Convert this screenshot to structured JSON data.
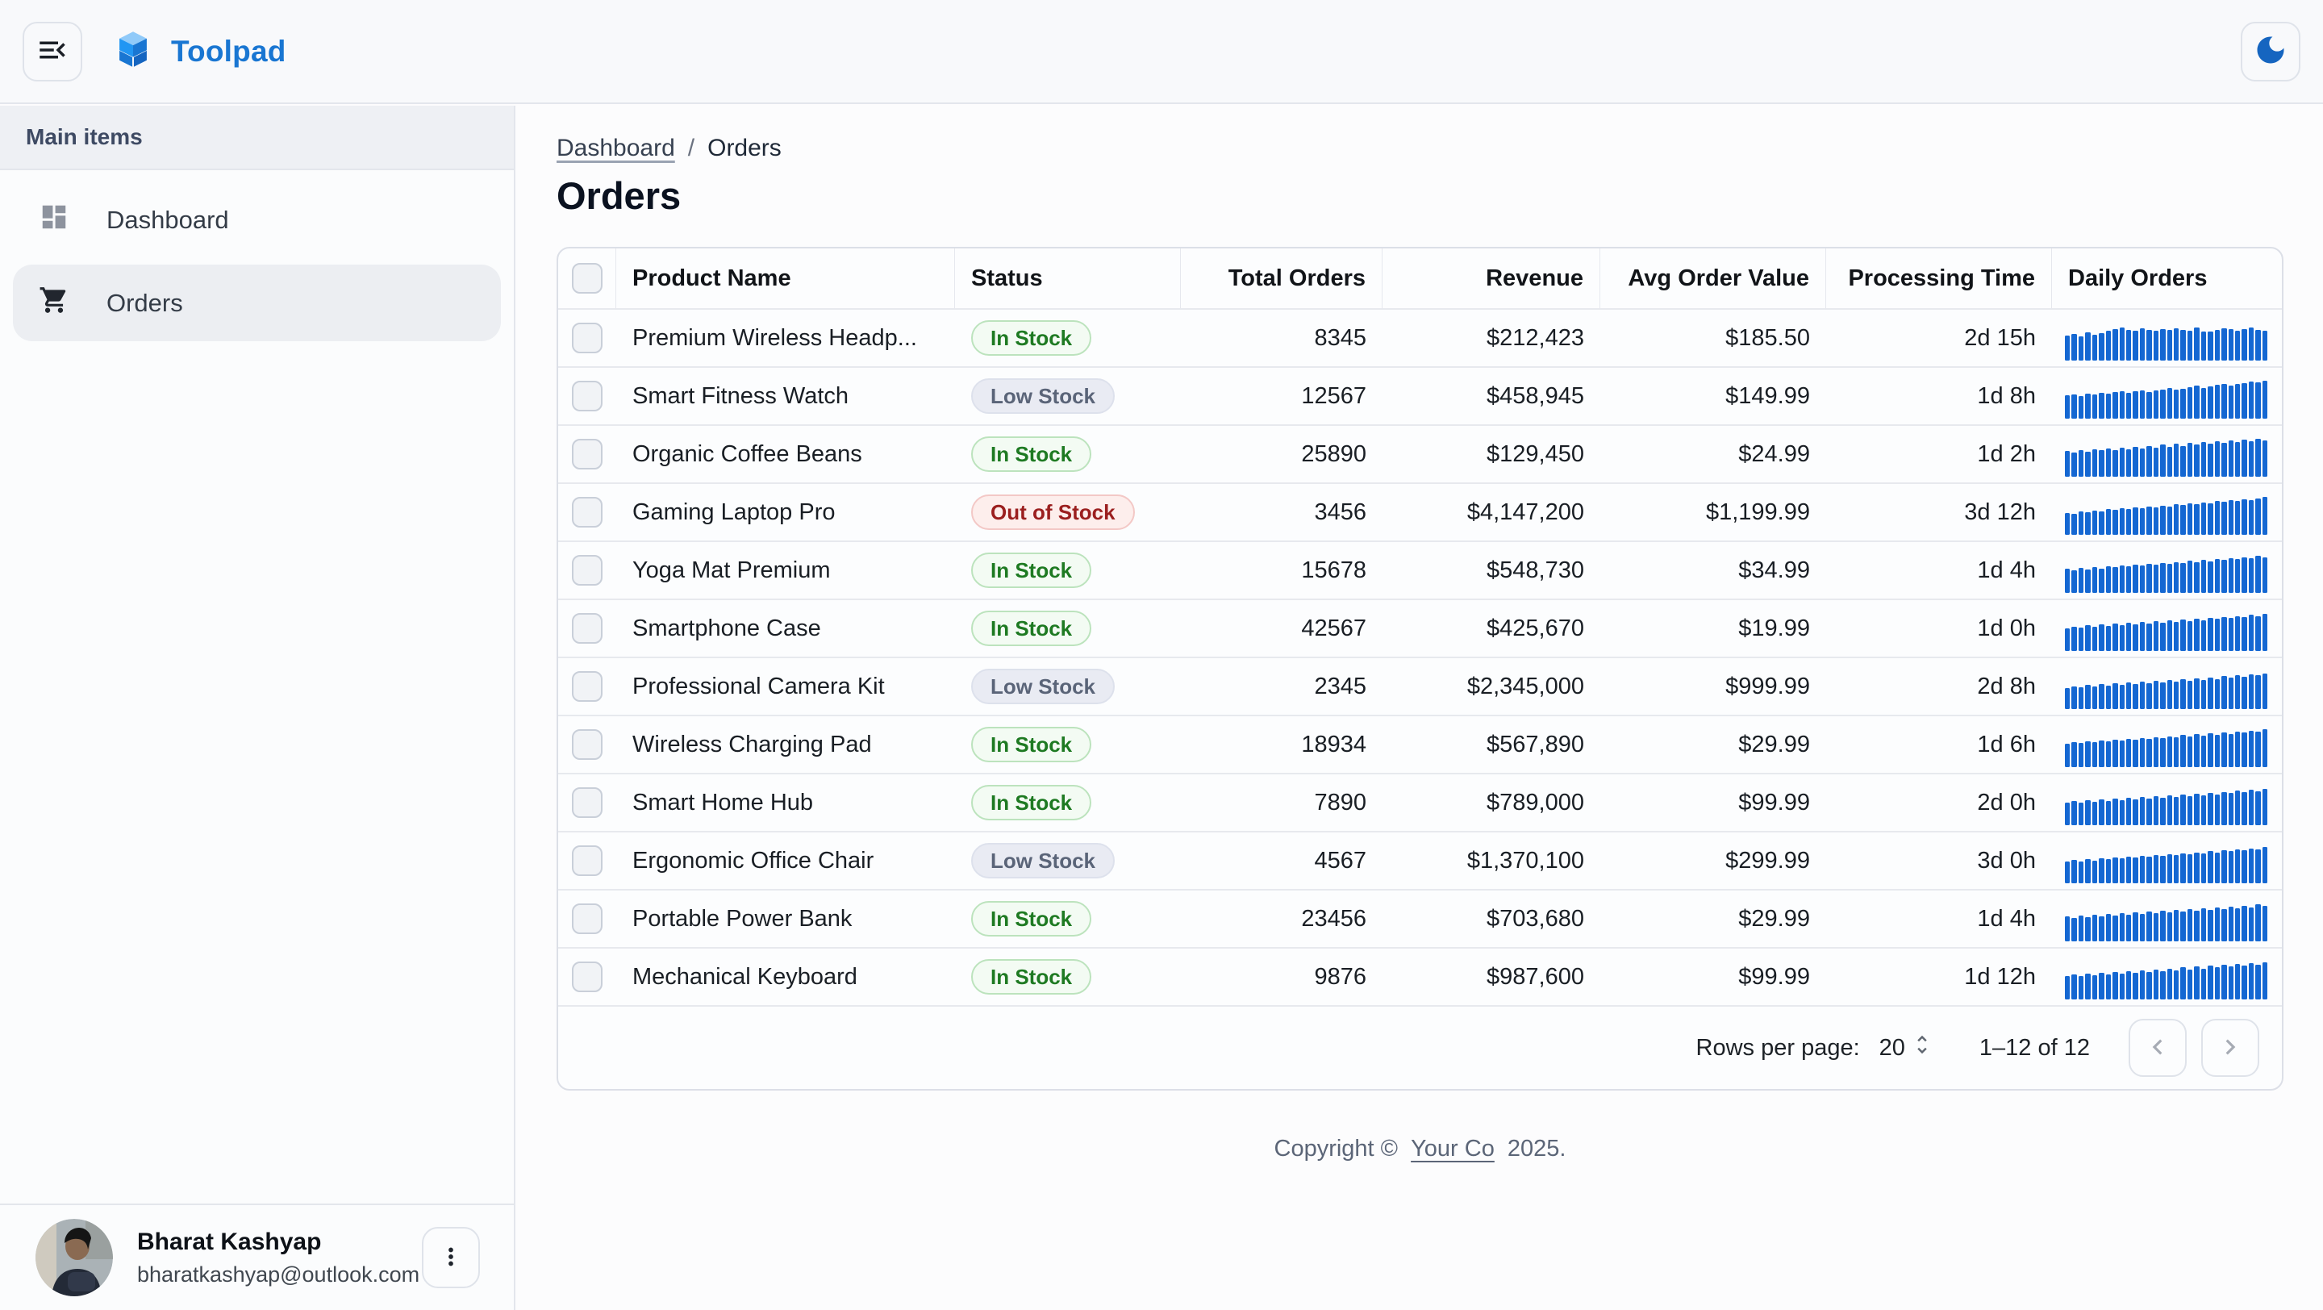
{
  "topbar": {
    "app_name": "Toolpad"
  },
  "sidebar": {
    "section": "Main items",
    "items": [
      {
        "label": "Dashboard",
        "icon": "dashboard-icon",
        "selected": false
      },
      {
        "label": "Orders",
        "icon": "cart-icon",
        "selected": true
      }
    ]
  },
  "breadcrumb": {
    "items": [
      "Dashboard",
      "Orders"
    ],
    "separator": "/"
  },
  "page": {
    "title": "Orders"
  },
  "table": {
    "columns": [
      "Product Name",
      "Status",
      "Total Orders",
      "Revenue",
      "Avg Order Value",
      "Processing Time",
      "Daily Orders"
    ],
    "rows": [
      {
        "name": "Premium Wireless Headp...",
        "status": "In Stock",
        "status_type": "in",
        "total": "8345",
        "revenue": "$212,423",
        "avg": "$185.50",
        "time": "2d 15h",
        "daily": [
          60,
          64,
          58,
          67,
          62,
          66,
          71,
          75,
          79,
          74,
          72,
          76,
          73,
          71,
          75,
          73,
          77,
          74,
          72,
          78,
          70,
          69,
          74,
          77,
          75,
          72,
          75,
          79,
          73,
          71
        ]
      },
      {
        "name": "Smart Fitness Watch",
        "status": "Low Stock",
        "status_type": "low",
        "total": "12567",
        "revenue": "$458,945",
        "avg": "$149.99",
        "time": "1d 8h",
        "daily": [
          55,
          58,
          54,
          60,
          57,
          62,
          59,
          63,
          66,
          62,
          65,
          68,
          64,
          67,
          70,
          73,
          69,
          72,
          75,
          78,
          74,
          77,
          80,
          83,
          79,
          82,
          85,
          88,
          86,
          91
        ]
      },
      {
        "name": "Organic Coffee Beans",
        "status": "In Stock",
        "status_type": "in",
        "total": "25890",
        "revenue": "$129,450",
        "avg": "$24.99",
        "time": "1d 2h",
        "daily": [
          62,
          58,
          64,
          60,
          66,
          63,
          68,
          64,
          70,
          66,
          72,
          68,
          74,
          70,
          76,
          72,
          78,
          74,
          80,
          76,
          82,
          78,
          84,
          80,
          86,
          82,
          88,
          84,
          90,
          87
        ]
      },
      {
        "name": "Gaming Laptop Pro",
        "status": "Out of Stock",
        "status_type": "out",
        "total": "3456",
        "revenue": "$4,147,200",
        "avg": "$1,199.99",
        "time": "3d 12h",
        "daily": [
          52,
          50,
          55,
          53,
          58,
          56,
          61,
          59,
          63,
          61,
          66,
          64,
          68,
          66,
          70,
          68,
          73,
          71,
          75,
          73,
          77,
          75,
          80,
          78,
          82,
          80,
          84,
          82,
          87,
          90
        ]
      },
      {
        "name": "Yoga Mat Premium",
        "status": "In Stock",
        "status_type": "in",
        "total": "15678",
        "revenue": "$548,730",
        "avg": "$34.99",
        "time": "1d 4h",
        "daily": [
          57,
          54,
          59,
          56,
          62,
          58,
          64,
          61,
          66,
          63,
          68,
          65,
          70,
          67,
          72,
          69,
          74,
          71,
          76,
          73,
          78,
          75,
          81,
          78,
          83,
          80,
          85,
          82,
          88,
          85
        ]
      },
      {
        "name": "Smartphone Case",
        "status": "In Stock",
        "status_type": "in",
        "total": "42567",
        "revenue": "$425,670",
        "avg": "$19.99",
        "time": "1d 0h",
        "daily": [
          54,
          58,
          55,
          61,
          57,
          63,
          60,
          65,
          62,
          67,
          64,
          69,
          66,
          71,
          68,
          73,
          70,
          75,
          72,
          77,
          74,
          79,
          76,
          81,
          78,
          83,
          81,
          86,
          83,
          89
        ]
      },
      {
        "name": "Professional Camera Kit",
        "status": "Low Stock",
        "status_type": "low",
        "total": "2345",
        "revenue": "$2,345,000",
        "avg": "$999.99",
        "time": "2d 8h",
        "daily": [
          50,
          54,
          51,
          57,
          53,
          59,
          56,
          61,
          58,
          63,
          60,
          65,
          62,
          67,
          64,
          69,
          66,
          71,
          68,
          73,
          70,
          75,
          72,
          78,
          75,
          80,
          77,
          82,
          80,
          85
        ]
      },
      {
        "name": "Wireless Charging Pad",
        "status": "In Stock",
        "status_type": "in",
        "total": "18934",
        "revenue": "$567,890",
        "avg": "$29.99",
        "time": "1d 6h",
        "daily": [
          56,
          60,
          57,
          62,
          59,
          64,
          61,
          66,
          63,
          68,
          65,
          70,
          67,
          72,
          69,
          74,
          71,
          76,
          73,
          78,
          75,
          80,
          77,
          82,
          79,
          84,
          82,
          87,
          84,
          90
        ]
      },
      {
        "name": "Smart Home Hub",
        "status": "In Stock",
        "status_type": "in",
        "total": "7890",
        "revenue": "$789,000",
        "avg": "$99.99",
        "time": "2d 0h",
        "daily": [
          53,
          57,
          54,
          59,
          56,
          61,
          58,
          63,
          60,
          65,
          62,
          67,
          64,
          69,
          66,
          71,
          68,
          73,
          70,
          75,
          72,
          77,
          74,
          79,
          77,
          82,
          79,
          84,
          81,
          87
        ]
      },
      {
        "name": "Ergonomic Office Chair",
        "status": "Low Stock",
        "status_type": "low",
        "total": "4567",
        "revenue": "$1,370,100",
        "avg": "$299.99",
        "time": "3d 0h",
        "daily": [
          51,
          55,
          52,
          58,
          54,
          60,
          57,
          62,
          59,
          64,
          61,
          66,
          63,
          68,
          65,
          70,
          67,
          72,
          69,
          74,
          71,
          76,
          73,
          79,
          76,
          81,
          78,
          83,
          81,
          86
        ]
      },
      {
        "name": "Portable Power Bank",
        "status": "In Stock",
        "status_type": "in",
        "total": "23456",
        "revenue": "$703,680",
        "avg": "$29.99",
        "time": "1d 4h",
        "daily": [
          59,
          55,
          61,
          57,
          63,
          59,
          65,
          61,
          67,
          63,
          69,
          65,
          71,
          67,
          73,
          69,
          75,
          71,
          77,
          73,
          79,
          75,
          81,
          77,
          83,
          79,
          85,
          81,
          88,
          84
        ]
      },
      {
        "name": "Mechanical Keyboard",
        "status": "In Stock",
        "status_type": "in",
        "total": "9876",
        "revenue": "$987,600",
        "avg": "$99.99",
        "time": "1d 12h",
        "daily": [
          55,
          59,
          56,
          62,
          58,
          64,
          60,
          66,
          62,
          68,
          64,
          70,
          66,
          72,
          68,
          74,
          70,
          76,
          72,
          78,
          74,
          80,
          76,
          82,
          78,
          84,
          80,
          86,
          83,
          89
        ]
      }
    ]
  },
  "pagination": {
    "rows_per_page_label": "Rows per page:",
    "rows_per_page": "20",
    "range": "1–12 of 12"
  },
  "footer": {
    "prefix": "Copyright ©",
    "link": "Your Co",
    "suffix": "2025."
  },
  "user": {
    "name": "Bharat Kashyap",
    "email": "bharatkashyap@outlook.com"
  },
  "colors": {
    "primary": "#1976d2",
    "spark": "#1467d2",
    "chip-in": "#1e7a22",
    "chip-low": "#5a6478",
    "chip-out": "#9b1f1f"
  }
}
